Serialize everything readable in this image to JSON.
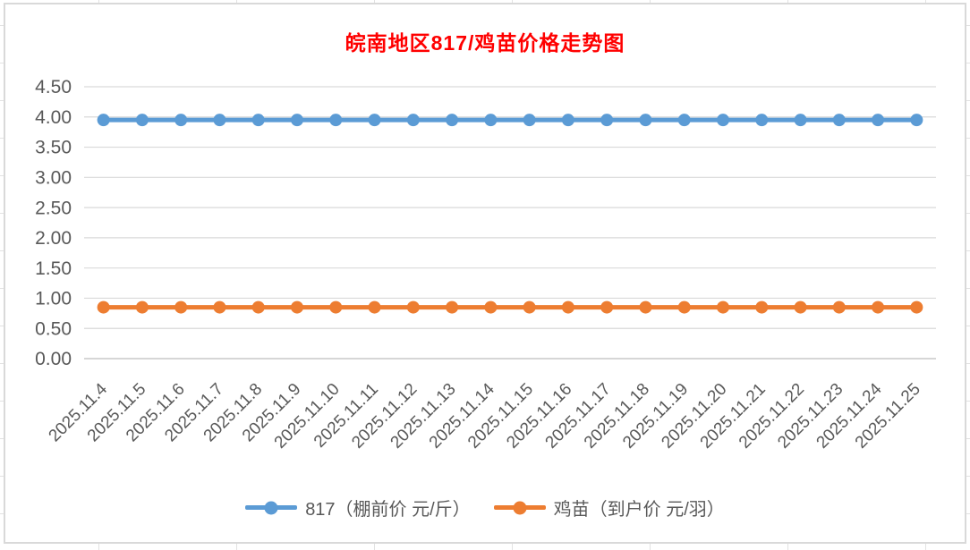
{
  "chart_data": {
    "type": "line",
    "title": "皖南地区817/鸡苗价格走势图",
    "title_color": "#FF0000",
    "categories": [
      "2025.11.4",
      "2025.11.5",
      "2025.11.6",
      "2025.11.7",
      "2025.11.8",
      "2025.11.9",
      "2025.11.10",
      "2025.11.11",
      "2025.11.12",
      "2025.11.13",
      "2025.11.14",
      "2025.11.15",
      "2025.11.16",
      "2025.11.17",
      "2025.11.18",
      "2025.11.19",
      "2025.11.20",
      "2025.11.21",
      "2025.11.22",
      "2025.11.23",
      "2025.11.24",
      "2025.11.25"
    ],
    "series": [
      {
        "name": "817（棚前价 元/斤）",
        "color": "#5B9BD5",
        "values": [
          3.95,
          3.95,
          3.95,
          3.95,
          3.95,
          3.95,
          3.95,
          3.95,
          3.95,
          3.95,
          3.95,
          3.95,
          3.95,
          3.95,
          3.95,
          3.95,
          3.95,
          3.95,
          3.95,
          3.95,
          3.95,
          3.95
        ]
      },
      {
        "name": "鸡苗（到户价 元/羽）",
        "color": "#ED7D31",
        "values": [
          0.85,
          0.85,
          0.85,
          0.85,
          0.85,
          0.85,
          0.85,
          0.85,
          0.85,
          0.85,
          0.85,
          0.85,
          0.85,
          0.85,
          0.85,
          0.85,
          0.85,
          0.85,
          0.85,
          0.85,
          0.85,
          0.85
        ]
      }
    ],
    "xlabel": "",
    "ylabel": "",
    "ylim": [
      0,
      4.5
    ],
    "ytick_step": 0.5,
    "ytick_labels": [
      "0.00",
      "0.50",
      "1.00",
      "1.50",
      "2.00",
      "2.50",
      "3.00",
      "3.50",
      "4.00",
      "4.50"
    ],
    "xtick_rotation_deg": 45,
    "grid": "horizontal",
    "gridline_color": "#D9D9D9",
    "axis_line_color": "#C9C9C9",
    "axis_text_color": "#595959",
    "legend_position": "bottom",
    "marker": "circle"
  }
}
